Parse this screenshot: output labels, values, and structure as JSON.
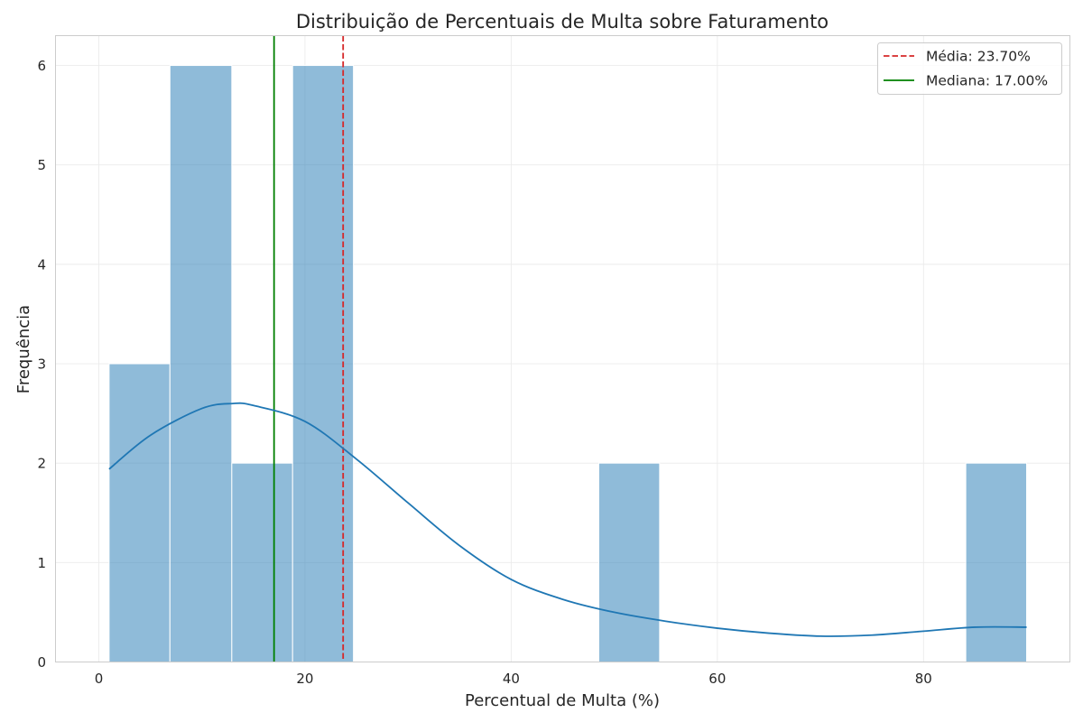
{
  "chart_data": {
    "type": "histogram",
    "title": "Distribuição de Percentuais de Multa sobre Faturamento",
    "xlabel": "Percentual de Multa (%)",
    "ylabel": "Frequência",
    "xlim": [
      -4.2,
      94.2
    ],
    "ylim": [
      0,
      6.3
    ],
    "xticks": [
      0,
      20,
      40,
      60,
      80
    ],
    "yticks": [
      0,
      1,
      2,
      3,
      4,
      5,
      6
    ],
    "bins": [
      {
        "x0": 1.0,
        "x1": 6.9,
        "count": 3
      },
      {
        "x0": 6.9,
        "x1": 12.9,
        "count": 6
      },
      {
        "x0": 12.9,
        "x1": 18.8,
        "count": 2
      },
      {
        "x0": 18.8,
        "x1": 24.7,
        "count": 6
      },
      {
        "x0": 24.7,
        "x1": 30.7,
        "count": 0
      },
      {
        "x0": 30.7,
        "x1": 36.6,
        "count": 0
      },
      {
        "x0": 36.6,
        "x1": 42.5,
        "count": 0
      },
      {
        "x0": 42.5,
        "x1": 48.5,
        "count": 0
      },
      {
        "x0": 48.5,
        "x1": 54.4,
        "count": 2
      },
      {
        "x0": 54.4,
        "x1": 60.3,
        "count": 0
      },
      {
        "x0": 60.3,
        "x1": 66.3,
        "count": 0
      },
      {
        "x0": 66.3,
        "x1": 72.2,
        "count": 0
      },
      {
        "x0": 72.2,
        "x1": 78.1,
        "count": 0
      },
      {
        "x0": 78.1,
        "x1": 84.1,
        "count": 0
      },
      {
        "x0": 84.1,
        "x1": 90.0,
        "count": 2
      }
    ],
    "kde": {
      "x": [
        1,
        5,
        10,
        13,
        15,
        20,
        25,
        30,
        35,
        40,
        45,
        50,
        55,
        60,
        65,
        70,
        75,
        80,
        85,
        90
      ],
      "y": [
        1.94,
        2.28,
        2.55,
        2.6,
        2.58,
        2.42,
        2.04,
        1.6,
        1.17,
        0.83,
        0.63,
        0.5,
        0.41,
        0.34,
        0.29,
        0.26,
        0.27,
        0.31,
        0.35,
        0.35
      ]
    },
    "reference_lines": [
      {
        "name": "Média: 23.70%",
        "x": 23.7,
        "style": "dashed",
        "color": "#d62728"
      },
      {
        "name": "Mediana: 17.00%",
        "x": 17.0,
        "style": "solid",
        "color": "#008000"
      }
    ],
    "grid": true,
    "legend_position": "top-right",
    "colors": {
      "bar_fill": "#1f77b4",
      "kde_line": "#1f77b4",
      "grid": "#ebebeb",
      "axes_edge": "#cccccc"
    }
  }
}
